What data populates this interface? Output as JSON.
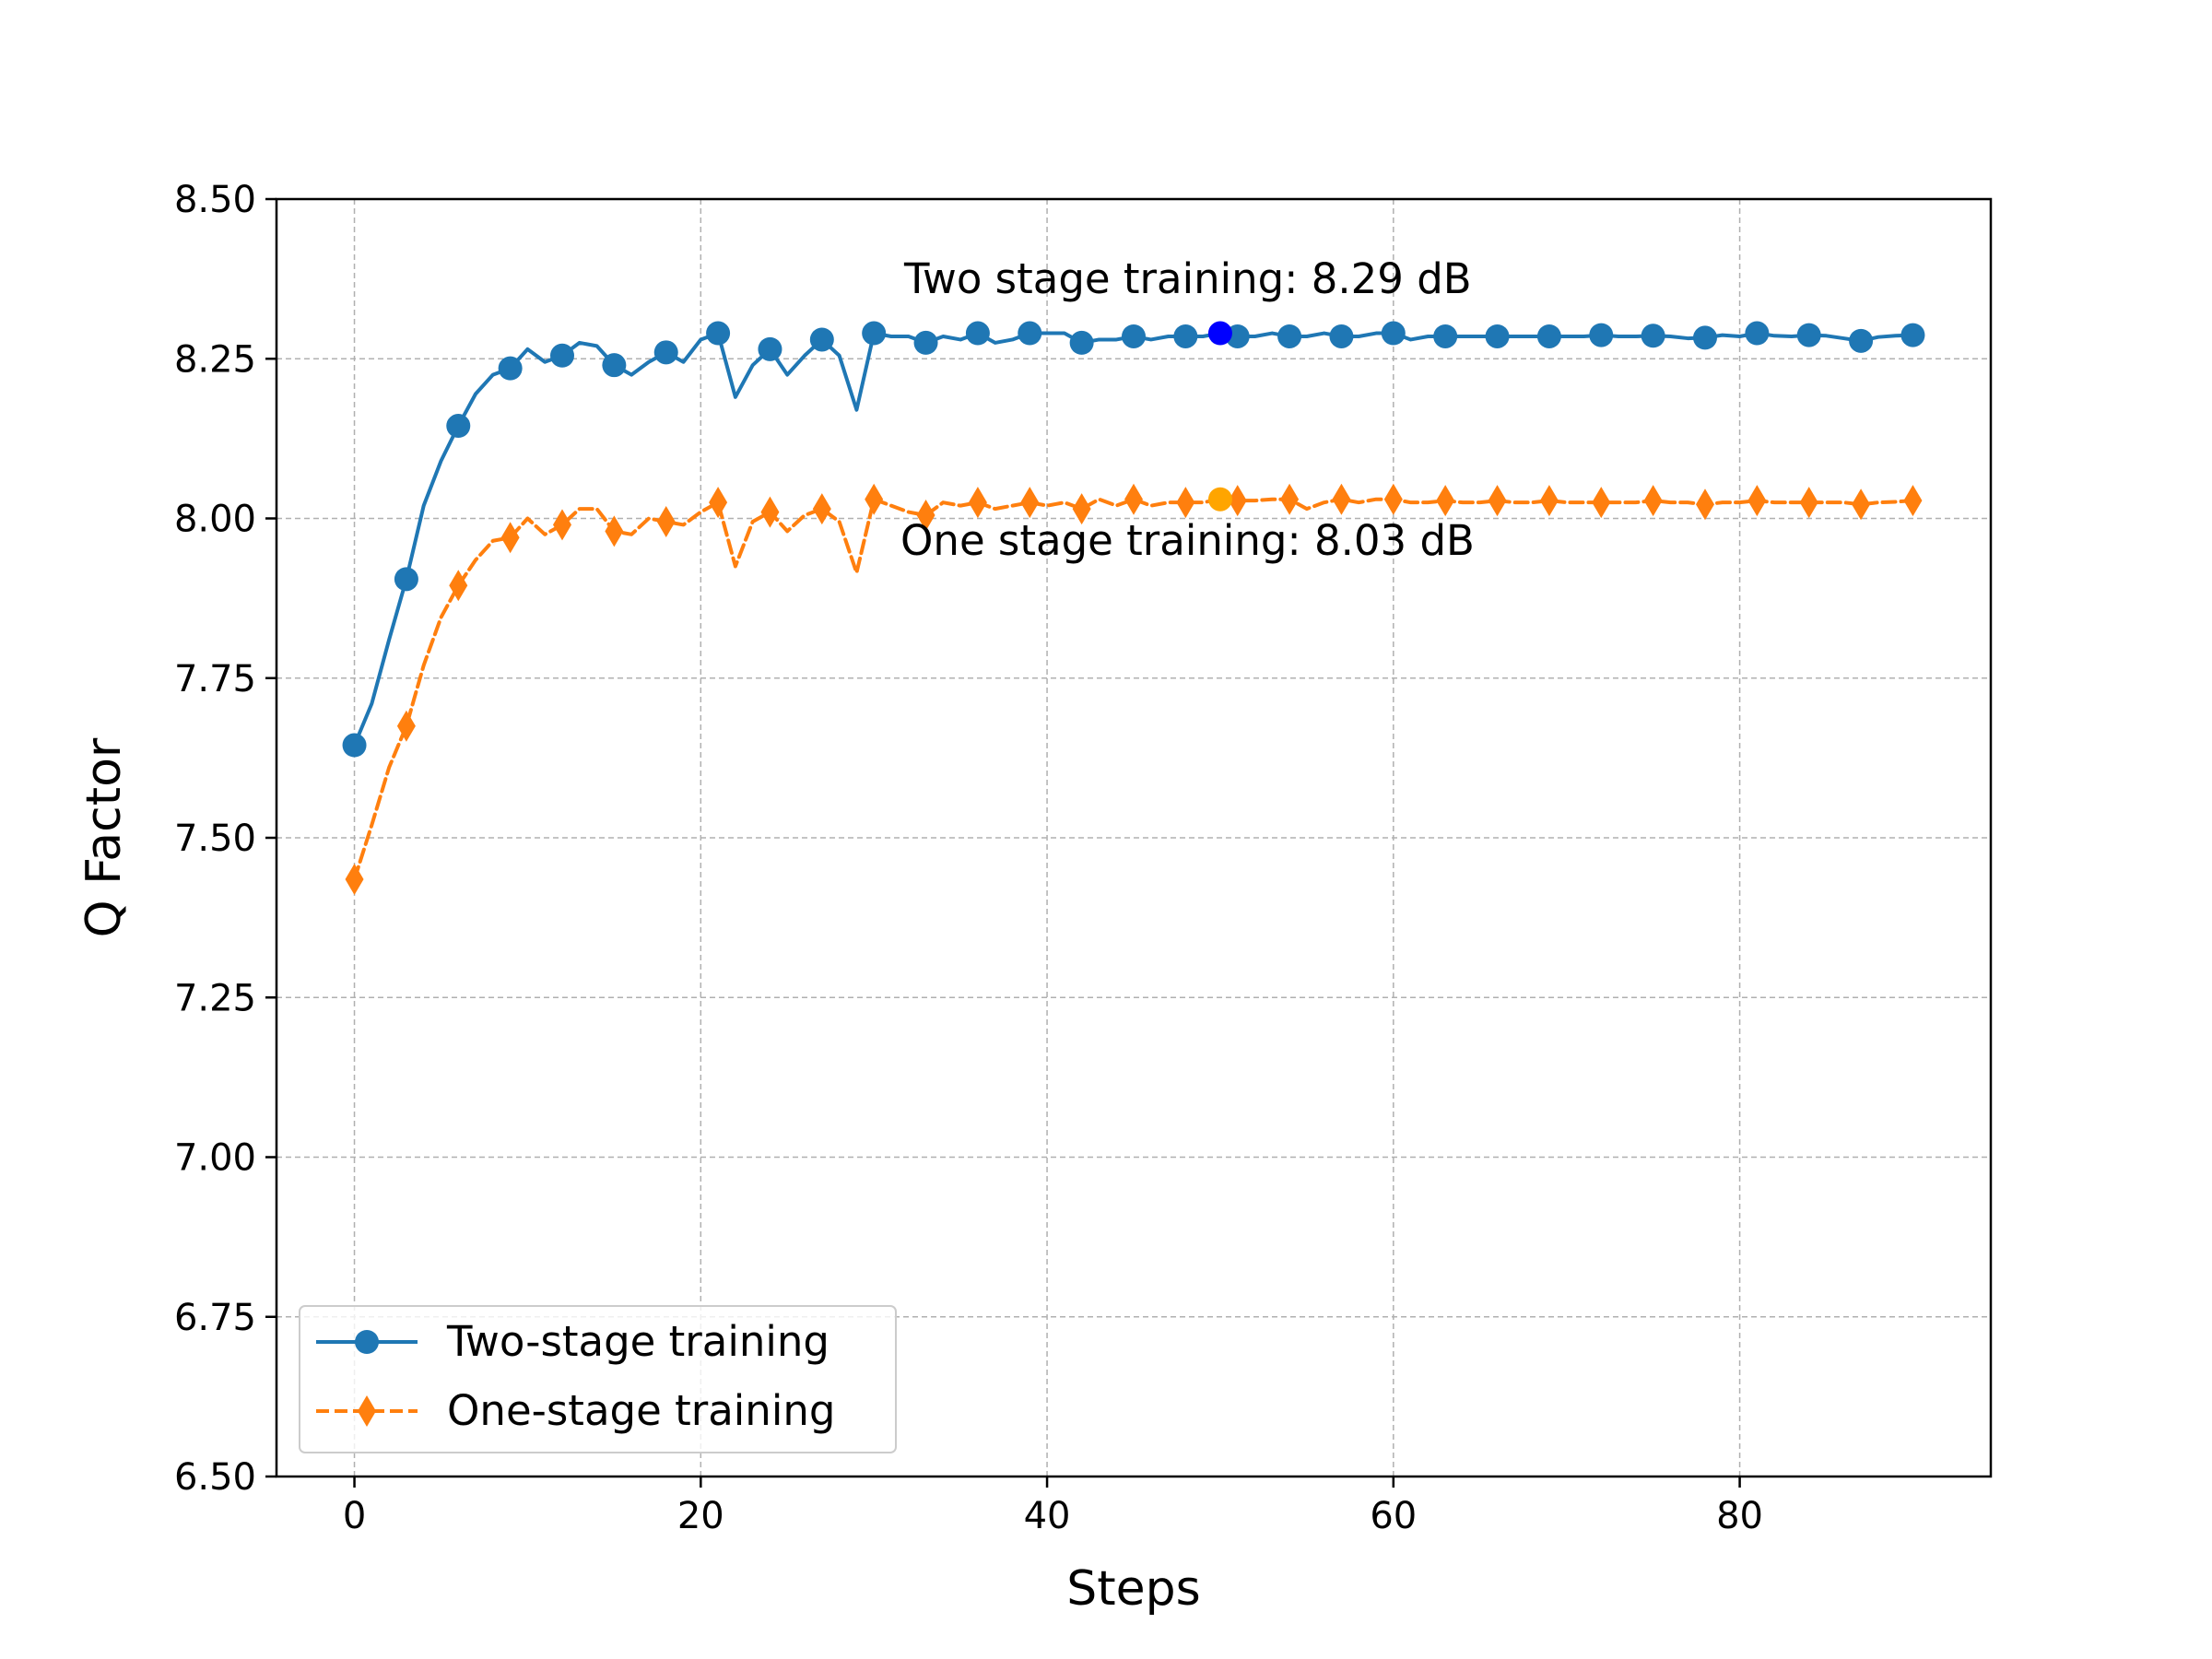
{
  "chart_data": {
    "type": "line",
    "xlabel": "Steps",
    "ylabel": "Q Factor",
    "xlim": [
      -4.5,
      94.5
    ],
    "ylim": [
      6.5,
      8.5
    ],
    "xticks": [
      0,
      20,
      40,
      60,
      80
    ],
    "xtick_labels": [
      "0",
      "20",
      "40",
      "60",
      "80"
    ],
    "yticks": [
      6.5,
      6.75,
      7.0,
      7.25,
      7.5,
      7.75,
      8.0,
      8.25,
      8.5
    ],
    "ytick_labels": [
      "6.50",
      "6.75",
      "7.00",
      "7.25",
      "7.50",
      "7.75",
      "8.00",
      "8.25",
      "8.50"
    ],
    "grid": true,
    "legend_position": "lower-left",
    "marker_every": 3,
    "series": [
      {
        "name": "Two-stage training",
        "color": "#1f77b4",
        "line_style": "solid",
        "marker": "circle",
        "x": [
          0,
          1,
          2,
          3,
          4,
          5,
          6,
          7,
          8,
          9,
          10,
          11,
          12,
          13,
          14,
          15,
          16,
          17,
          18,
          19,
          20,
          21,
          22,
          23,
          24,
          25,
          26,
          27,
          28,
          29,
          30,
          31,
          32,
          33,
          34,
          35,
          36,
          37,
          38,
          39,
          40,
          41,
          42,
          43,
          44,
          45,
          46,
          47,
          48,
          49,
          50,
          51,
          52,
          53,
          54,
          55,
          56,
          57,
          58,
          59,
          60,
          61,
          62,
          63,
          64,
          65,
          66,
          67,
          68,
          69,
          70,
          71,
          72,
          73,
          74,
          75,
          76,
          77,
          78,
          79,
          80,
          81,
          82,
          83,
          84,
          85,
          86,
          87,
          88,
          89,
          90
        ],
        "y": [
          7.645,
          7.71,
          7.81,
          7.905,
          8.02,
          8.09,
          8.145,
          8.195,
          8.225,
          8.235,
          8.265,
          8.245,
          8.255,
          8.275,
          8.27,
          8.24,
          8.225,
          8.245,
          8.26,
          8.245,
          8.28,
          8.29,
          8.19,
          8.24,
          8.265,
          8.225,
          8.255,
          8.28,
          8.255,
          8.17,
          8.29,
          8.285,
          8.285,
          8.275,
          8.285,
          8.28,
          8.29,
          8.275,
          8.28,
          8.29,
          8.29,
          8.29,
          8.275,
          8.28,
          8.28,
          8.285,
          8.28,
          8.285,
          8.285,
          8.285,
          8.29,
          8.285,
          8.285,
          8.29,
          8.285,
          8.285,
          8.29,
          8.285,
          8.285,
          8.29,
          8.29,
          8.28,
          8.285,
          8.285,
          8.285,
          8.285,
          8.285,
          8.285,
          8.285,
          8.285,
          8.285,
          8.285,
          8.287,
          8.285,
          8.285,
          8.286,
          8.285,
          8.282,
          8.283,
          8.287,
          8.285,
          8.29,
          8.286,
          8.285,
          8.287,
          8.286,
          8.282,
          8.278,
          8.284,
          8.286,
          8.287
        ]
      },
      {
        "name": "One-stage training",
        "color": "#ff7f0e",
        "line_style": "dashed",
        "marker": "diamond",
        "x": [
          0,
          1,
          2,
          3,
          4,
          5,
          6,
          7,
          8,
          9,
          10,
          11,
          12,
          13,
          14,
          15,
          16,
          17,
          18,
          19,
          20,
          21,
          22,
          23,
          24,
          25,
          26,
          27,
          28,
          29,
          30,
          31,
          32,
          33,
          34,
          35,
          36,
          37,
          38,
          39,
          40,
          41,
          42,
          43,
          44,
          45,
          46,
          47,
          48,
          49,
          50,
          51,
          52,
          53,
          54,
          55,
          56,
          57,
          58,
          59,
          60,
          61,
          62,
          63,
          64,
          65,
          66,
          67,
          68,
          69,
          70,
          71,
          72,
          73,
          74,
          75,
          76,
          77,
          78,
          79,
          80,
          81,
          82,
          83,
          84,
          85,
          86,
          87,
          88,
          89,
          90
        ],
        "y": [
          7.435,
          7.52,
          7.61,
          7.675,
          7.77,
          7.845,
          7.895,
          7.935,
          7.965,
          7.97,
          8.0,
          7.975,
          7.99,
          8.015,
          8.015,
          7.98,
          7.975,
          8.0,
          7.995,
          7.99,
          8.01,
          8.025,
          7.925,
          7.995,
          8.01,
          7.98,
          8.005,
          8.015,
          7.995,
          7.915,
          8.03,
          8.02,
          8.01,
          8.005,
          8.025,
          8.02,
          8.025,
          8.015,
          8.02,
          8.025,
          8.02,
          8.025,
          8.015,
          8.03,
          8.02,
          8.03,
          8.02,
          8.025,
          8.025,
          8.025,
          8.03,
          8.028,
          8.028,
          8.03,
          8.03,
          8.015,
          8.025,
          8.03,
          8.025,
          8.03,
          8.03,
          8.025,
          8.025,
          8.028,
          8.025,
          8.025,
          8.028,
          8.025,
          8.025,
          8.028,
          8.025,
          8.025,
          8.025,
          8.025,
          8.025,
          8.028,
          8.025,
          8.025,
          8.022,
          8.025,
          8.025,
          8.028,
          8.025,
          8.025,
          8.025,
          8.025,
          8.025,
          8.022,
          8.025,
          8.026,
          8.028
        ]
      }
    ],
    "highlights": [
      {
        "x": 50,
        "y": 8.29,
        "color": "#0000ff",
        "text": "Two stage training: 8.29 dB"
      },
      {
        "x": 50,
        "y": 8.03,
        "color": "#ffa500",
        "text": "One stage training: 8.03 dB"
      }
    ]
  }
}
